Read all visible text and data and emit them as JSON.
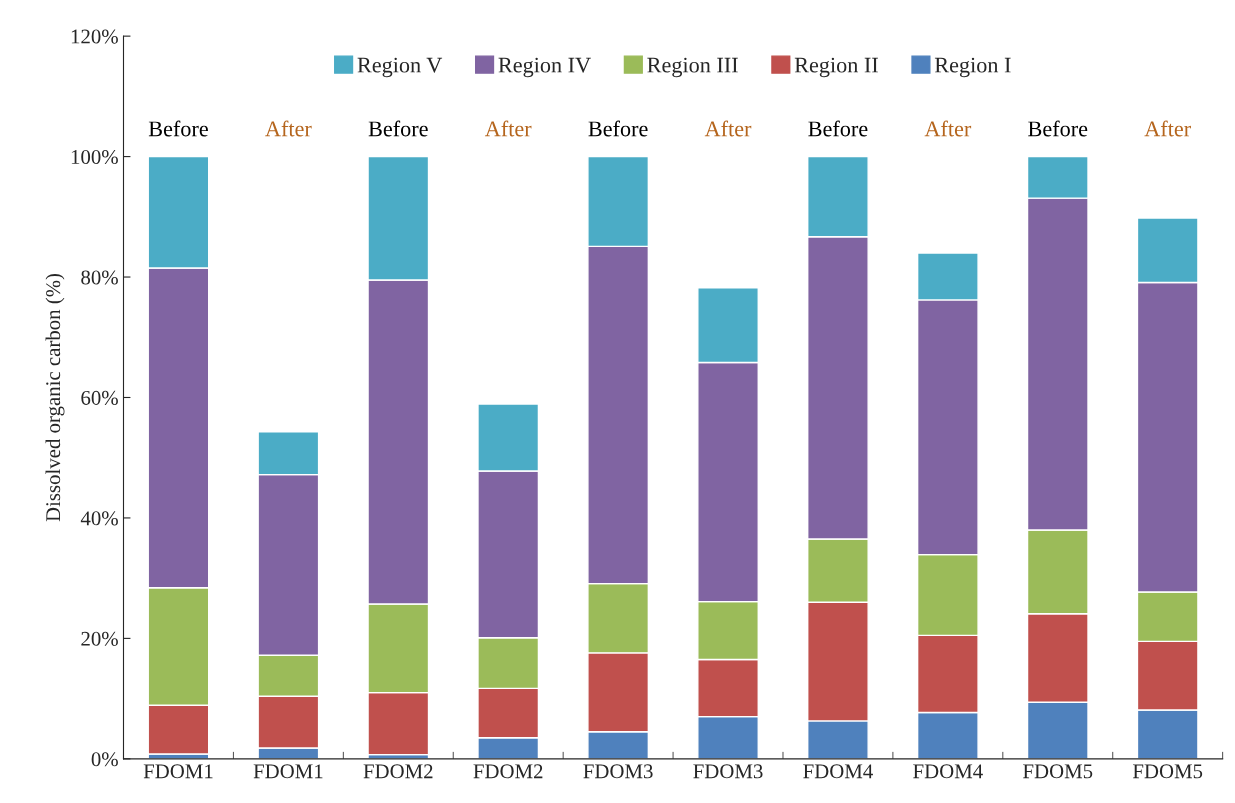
{
  "chart_data": {
    "type": "bar",
    "stacked": true,
    "ylabel": "Dissolved organic carbon (%)",
    "categories": [
      "FDOM1",
      "FDOM1",
      "FDOM2",
      "FDOM2",
      "FDOM3",
      "FDOM3",
      "FDOM4",
      "FDOM4",
      "FDOM5",
      "FDOM5"
    ],
    "series": [
      {
        "name": "Region I",
        "color": "#4f81bd",
        "values": [
          0.8,
          1.8,
          0.7,
          3.5,
          4.5,
          7.0,
          6.3,
          7.7,
          9.4,
          8.1
        ]
      },
      {
        "name": "Region II",
        "color": "#c0504d",
        "values": [
          8.1,
          8.6,
          10.3,
          8.2,
          13.1,
          9.5,
          19.7,
          12.8,
          14.7,
          11.4
        ]
      },
      {
        "name": "Region III",
        "color": "#9bbb59",
        "values": [
          19.5,
          6.8,
          14.7,
          8.4,
          11.5,
          9.6,
          10.5,
          13.4,
          13.9,
          8.2
        ]
      },
      {
        "name": "Region IV",
        "color": "#8064a2",
        "values": [
          53.1,
          30.0,
          53.8,
          27.7,
          56.0,
          39.7,
          50.2,
          42.3,
          55.1,
          51.4
        ]
      },
      {
        "name": "Region V",
        "color": "#4bacc6",
        "values": [
          18.5,
          7.1,
          20.5,
          11.1,
          14.9,
          12.4,
          13.3,
          7.8,
          6.9,
          10.7
        ]
      }
    ],
    "ylim": [
      0,
      120
    ],
    "yticks": [
      {
        "value": 0,
        "label": "0%"
      },
      {
        "value": 20,
        "label": "20%"
      },
      {
        "value": 40,
        "label": "40%"
      },
      {
        "value": 60,
        "label": "60%"
      },
      {
        "value": 80,
        "label": "80%"
      },
      {
        "value": 100,
        "label": "100%"
      },
      {
        "value": 120,
        "label": "120%"
      }
    ],
    "annotations": [
      "Before",
      "After",
      "Before",
      "After",
      "Before",
      "After",
      "Before",
      "After",
      "Before",
      "After"
    ],
    "legend": "top",
    "grid": false
  }
}
